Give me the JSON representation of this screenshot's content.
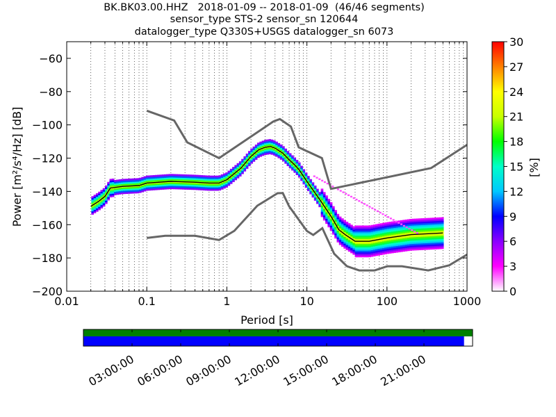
{
  "title_lines": [
    "BK.BK03.00.HHZ   2018-01-09 -- 2018-01-09  (46/46 segments)",
    "sensor_type STS-2 sensor_sn 120644",
    "datalogger_type Q330S+USGS datalogger_sn 6073"
  ],
  "chart_data": [
    {
      "type": "heatmap",
      "xlabel": "Period [s]",
      "ylabel": "Power [m²/s⁴/Hz] [dB]",
      "xscale": "log",
      "xlim": [
        0.01,
        1000
      ],
      "ylim": [
        -200,
        -50
      ],
      "xticks": [
        0.01,
        0.1,
        1,
        10,
        100,
        1000
      ],
      "xticklabels": [
        "0.01",
        "0.1",
        "1",
        "10",
        "100",
        "1000"
      ],
      "yticks": [
        -200,
        -180,
        -160,
        -140,
        -120,
        -100,
        -80,
        -60
      ],
      "yticklabels": [
        "−200",
        "−180",
        "−160",
        "−140",
        "−120",
        "−100",
        "−80",
        "−60"
      ],
      "grid": "vertical dotted",
      "colorbar": {
        "label": "[%]",
        "range": [
          0,
          30
        ],
        "ticks": [
          0,
          3,
          6,
          9,
          12,
          15,
          18,
          21,
          24,
          27,
          30
        ],
        "colormap": [
          "#ffffff",
          "#ff00ff",
          "#8a00ff",
          "#0000ff",
          "#00c8ff",
          "#00ffc8",
          "#00ff00",
          "#c8ff00",
          "#ffff00",
          "#ff8000",
          "#ff0000"
        ]
      },
      "noise_models": {
        "color": "#666666",
        "nhnm": [
          [
            0.1,
            -91.5
          ],
          [
            0.22,
            -97.4
          ],
          [
            0.32,
            -110.5
          ],
          [
            0.8,
            -120
          ],
          [
            3.8,
            -98
          ],
          [
            4.6,
            -96.5
          ],
          [
            6.3,
            -101
          ],
          [
            7.9,
            -113.5
          ],
          [
            15.4,
            -120
          ],
          [
            20,
            -138.5
          ],
          [
            354.8,
            -126
          ],
          [
            1000,
            -112
          ]
        ],
        "nlnm": [
          [
            0.1,
            -168
          ],
          [
            0.17,
            -166.7
          ],
          [
            0.4,
            -166.7
          ],
          [
            0.8,
            -169.2
          ],
          [
            1.24,
            -163.7
          ],
          [
            2.4,
            -148.6
          ],
          [
            4.3,
            -141.1
          ],
          [
            5,
            -141
          ],
          [
            6,
            -149
          ],
          [
            10,
            -163.8
          ],
          [
            12,
            -166.2
          ],
          [
            15.6,
            -162.1
          ],
          [
            21.9,
            -177.5
          ],
          [
            31.6,
            -185
          ],
          [
            45,
            -187.5
          ],
          [
            70,
            -187.5
          ],
          [
            101,
            -185
          ],
          [
            154,
            -185
          ],
          [
            328,
            -187.5
          ],
          [
            600,
            -184.4
          ],
          [
            1000,
            -178
          ]
        ]
      },
      "mean_curve": [
        [
          0.02,
          -149
        ],
        [
          0.025,
          -146
        ],
        [
          0.03,
          -143
        ],
        [
          0.035,
          -138
        ],
        [
          0.05,
          -137
        ],
        [
          0.08,
          -136.5
        ],
        [
          0.1,
          -135
        ],
        [
          0.2,
          -134
        ],
        [
          0.4,
          -134.5
        ],
        [
          0.6,
          -135
        ],
        [
          0.8,
          -135
        ],
        [
          1,
          -133
        ],
        [
          1.5,
          -126
        ],
        [
          2,
          -119
        ],
        [
          2.5,
          -115
        ],
        [
          3,
          -113.5
        ],
        [
          3.5,
          -113
        ],
        [
          4,
          -114
        ],
        [
          5,
          -117
        ],
        [
          6,
          -121
        ],
        [
          7,
          -124
        ],
        [
          8,
          -127
        ],
        [
          10,
          -134
        ],
        [
          15,
          -146
        ],
        [
          20,
          -155
        ],
        [
          25,
          -163
        ],
        [
          30,
          -166
        ],
        [
          40,
          -170
        ],
        [
          60,
          -170
        ],
        [
          100,
          -168
        ],
        [
          200,
          -166
        ],
        [
          500,
          -165
        ]
      ]
    },
    {
      "type": "timeline",
      "xticklabels": [
        "03:00:00",
        "06:00:00",
        "09:00:00",
        "12:00:00",
        "15:00:00",
        "18:00:00",
        "21:00:00"
      ],
      "bars": [
        {
          "color": "#008000",
          "start_fraction": 0.0,
          "end_fraction": 1.0
        },
        {
          "color": "#0000ff",
          "start_fraction": 0.0,
          "end_fraction": 0.978
        }
      ]
    }
  ]
}
